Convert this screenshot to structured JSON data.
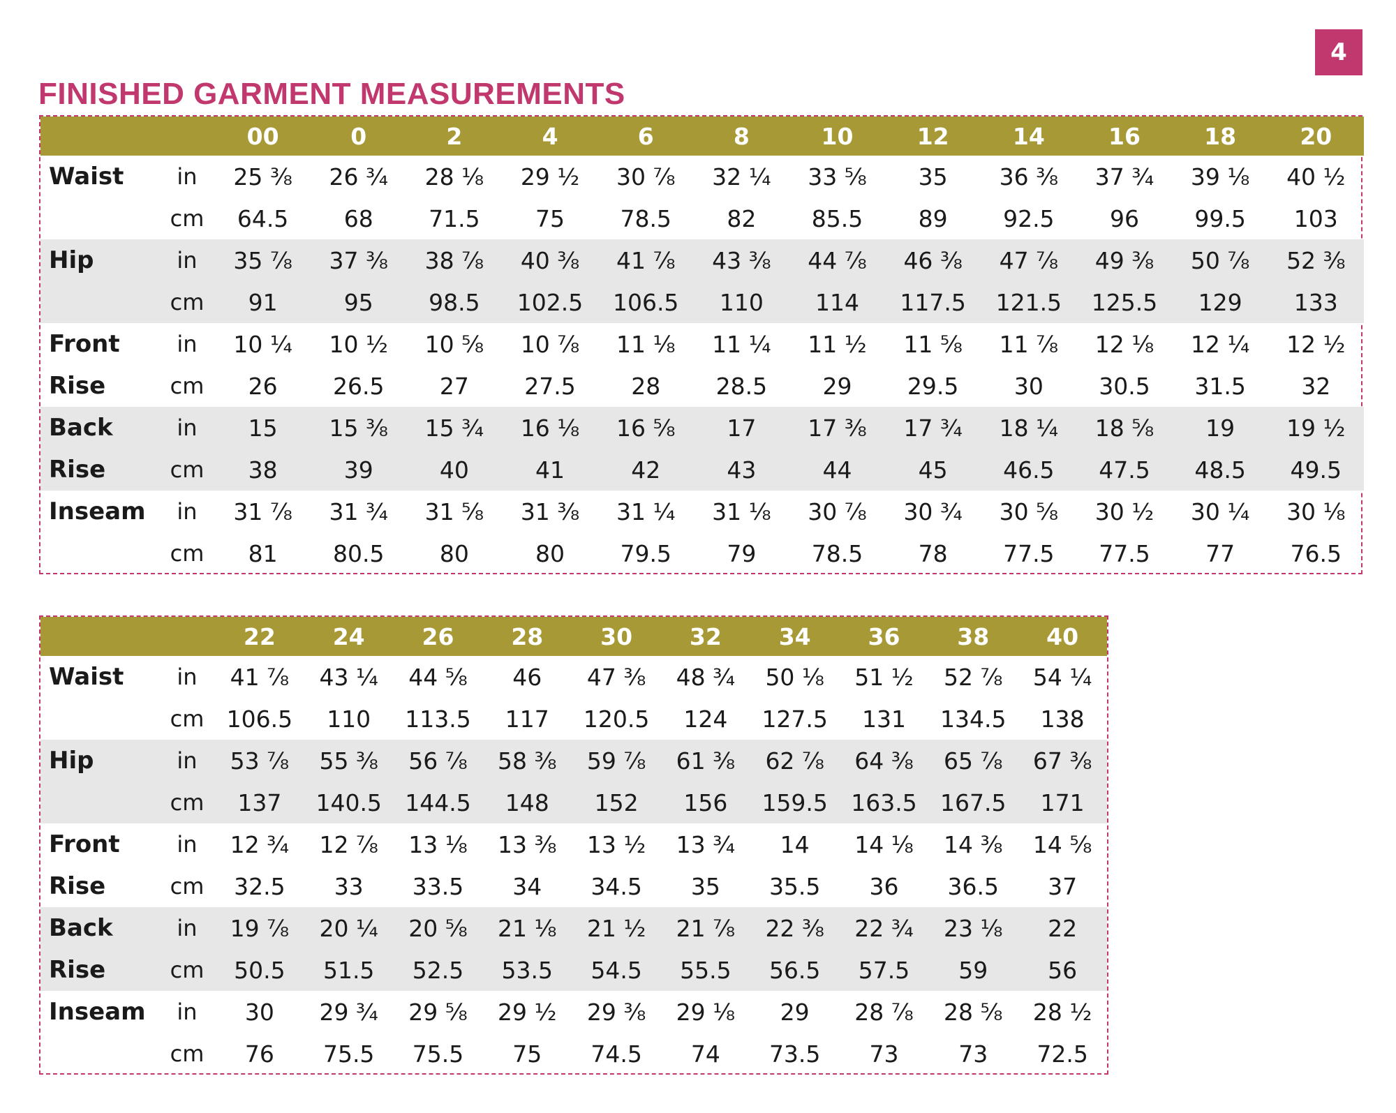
{
  "page_number": "4",
  "title": "FINISHED GARMENT MEASUREMENTS",
  "colors": {
    "accent": "#c0386d",
    "header_bg": "#a79a36",
    "row_shade": "#e7e7e7"
  },
  "tables": [
    {
      "sizes": [
        "00",
        "0",
        "2",
        "4",
        "6",
        "8",
        "10",
        "12",
        "14",
        "16",
        "18",
        "20"
      ],
      "rows": [
        {
          "label": "Waist",
          "unit": "in",
          "values": [
            "25 ⅜",
            "26 ¾",
            "28 ⅛",
            "29 ½",
            "30 ⅞",
            "32 ¼",
            "33 ⅝",
            "35",
            "36 ⅜",
            "37 ¾",
            "39 ⅛",
            "40 ½"
          ]
        },
        {
          "label": "",
          "unit": "cm",
          "values": [
            "64.5",
            "68",
            "71.5",
            "75",
            "78.5",
            "82",
            "85.5",
            "89",
            "92.5",
            "96",
            "99.5",
            "103"
          ]
        },
        {
          "label": "Hip",
          "unit": "in",
          "values": [
            "35 ⅞",
            "37 ⅜",
            "38 ⅞",
            "40 ⅜",
            "41 ⅞",
            "43 ⅜",
            "44 ⅞",
            "46 ⅜",
            "47 ⅞",
            "49 ⅜",
            "50 ⅞",
            "52 ⅜"
          ]
        },
        {
          "label": "",
          "unit": "cm",
          "values": [
            "91",
            "95",
            "98.5",
            "102.5",
            "106.5",
            "110",
            "114",
            "117.5",
            "121.5",
            "125.5",
            "129",
            "133"
          ]
        },
        {
          "label": "Front",
          "unit": "in",
          "values": [
            "10 ¼",
            "10 ½",
            "10 ⅝",
            "10 ⅞",
            "11 ⅛",
            "11 ¼",
            "11 ½",
            "11 ⅝",
            "11 ⅞",
            "12 ⅛",
            "12 ¼",
            "12 ½"
          ]
        },
        {
          "label": "Rise",
          "unit": "cm",
          "values": [
            "26",
            "26.5",
            "27",
            "27.5",
            "28",
            "28.5",
            "29",
            "29.5",
            "30",
            "30.5",
            "31.5",
            "32"
          ]
        },
        {
          "label": "Back",
          "unit": "in",
          "values": [
            "15",
            "15 ⅜",
            "15 ¾",
            "16 ⅛",
            "16 ⅝",
            "17",
            "17 ⅜",
            "17 ¾",
            "18 ¼",
            "18 ⅝",
            "19",
            "19 ½"
          ]
        },
        {
          "label": "Rise",
          "unit": "cm",
          "values": [
            "38",
            "39",
            "40",
            "41",
            "42",
            "43",
            "44",
            "45",
            "46.5",
            "47.5",
            "48.5",
            "49.5"
          ]
        },
        {
          "label": "Inseam",
          "unit": "in",
          "values": [
            "31 ⅞",
            "31 ¾",
            "31 ⅝",
            "31 ⅜",
            "31 ¼",
            "31 ⅛",
            "30 ⅞",
            "30 ¾",
            "30 ⅝",
            "30 ½",
            "30 ¼",
            "30 ⅛"
          ]
        },
        {
          "label": "",
          "unit": "cm",
          "values": [
            "81",
            "80.5",
            "80",
            "80",
            "79.5",
            "79",
            "78.5",
            "78",
            "77.5",
            "77.5",
            "77",
            "76.5"
          ]
        }
      ]
    },
    {
      "sizes": [
        "22",
        "24",
        "26",
        "28",
        "30",
        "32",
        "34",
        "36",
        "38",
        "40"
      ],
      "rows": [
        {
          "label": "Waist",
          "unit": "in",
          "values": [
            "41 ⅞",
            "43 ¼",
            "44 ⅝",
            "46",
            "47 ⅜",
            "48 ¾",
            "50 ⅛",
            "51 ½",
            "52 ⅞",
            "54 ¼"
          ]
        },
        {
          "label": "",
          "unit": "cm",
          "values": [
            "106.5",
            "110",
            "113.5",
            "117",
            "120.5",
            "124",
            "127.5",
            "131",
            "134.5",
            "138"
          ]
        },
        {
          "label": "Hip",
          "unit": "in",
          "values": [
            "53 ⅞",
            "55 ⅜",
            "56 ⅞",
            "58 ⅜",
            "59 ⅞",
            "61 ⅜",
            "62 ⅞",
            "64 ⅜",
            "65 ⅞",
            "67 ⅜"
          ]
        },
        {
          "label": "",
          "unit": "cm",
          "values": [
            "137",
            "140.5",
            "144.5",
            "148",
            "152",
            "156",
            "159.5",
            "163.5",
            "167.5",
            "171"
          ]
        },
        {
          "label": "Front",
          "unit": "in",
          "values": [
            "12 ¾",
            "12 ⅞",
            "13 ⅛",
            "13 ⅜",
            "13 ½",
            "13 ¾",
            "14",
            "14 ⅛",
            "14 ⅜",
            "14 ⅝"
          ]
        },
        {
          "label": "Rise",
          "unit": "cm",
          "values": [
            "32.5",
            "33",
            "33.5",
            "34",
            "34.5",
            "35",
            "35.5",
            "36",
            "36.5",
            "37"
          ]
        },
        {
          "label": "Back",
          "unit": "in",
          "values": [
            "19 ⅞",
            "20 ¼",
            "20 ⅝",
            "21 ⅛",
            "21 ½",
            "21 ⅞",
            "22 ⅜",
            "22 ¾",
            "23 ⅛",
            "22"
          ]
        },
        {
          "label": "Rise",
          "unit": "cm",
          "values": [
            "50.5",
            "51.5",
            "52.5",
            "53.5",
            "54.5",
            "55.5",
            "56.5",
            "57.5",
            "59",
            "56"
          ]
        },
        {
          "label": "Inseam",
          "unit": "in",
          "values": [
            "30",
            "29 ¾",
            "29 ⅝",
            "29 ½",
            "29 ⅜",
            "29 ⅛",
            "29",
            "28 ⅞",
            "28 ⅝",
            "28 ½"
          ]
        },
        {
          "label": "",
          "unit": "cm",
          "values": [
            "76",
            "75.5",
            "75.5",
            "75",
            "74.5",
            "74",
            "73.5",
            "73",
            "73",
            "72.5"
          ]
        }
      ]
    }
  ]
}
